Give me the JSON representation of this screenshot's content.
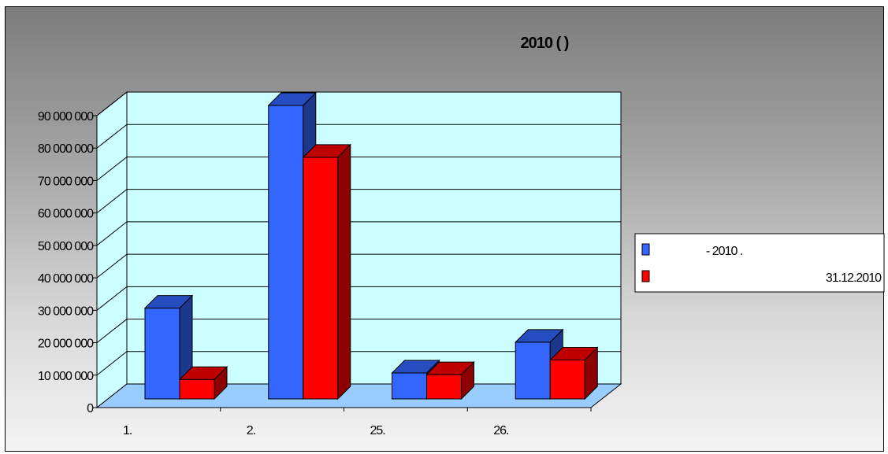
{
  "chart_data": {
    "type": "bar",
    "title": "2010 (          )",
    "xlabel": "",
    "ylabel": "",
    "categories": [
      "1.",
      "2.",
      "25.",
      "26."
    ],
    "series": [
      {
        "name": "- 2010 .",
        "color": "#3366ff",
        "values": [
          28000000,
          90500000,
          8000000,
          17500000
        ]
      },
      {
        "name": "31.12.2010",
        "color": "#ff0000",
        "values": [
          6000000,
          74500000,
          7500000,
          12000000
        ]
      }
    ],
    "ylim": [
      0,
      90000000
    ],
    "yticks": [
      0,
      10000000,
      20000000,
      30000000,
      40000000,
      50000000,
      60000000,
      70000000,
      80000000,
      90000000
    ],
    "ytick_labels": [
      "0",
      "10 000 000",
      "20 000 000",
      "30 000 000",
      "40 000 000",
      "50 000 000",
      "60 000 000",
      "70 000 000",
      "80 000 000",
      "90 000 000"
    ],
    "grid": true,
    "legend_position": "right",
    "wall_color": "#ccffff",
    "floor_color": "#99ccff"
  }
}
